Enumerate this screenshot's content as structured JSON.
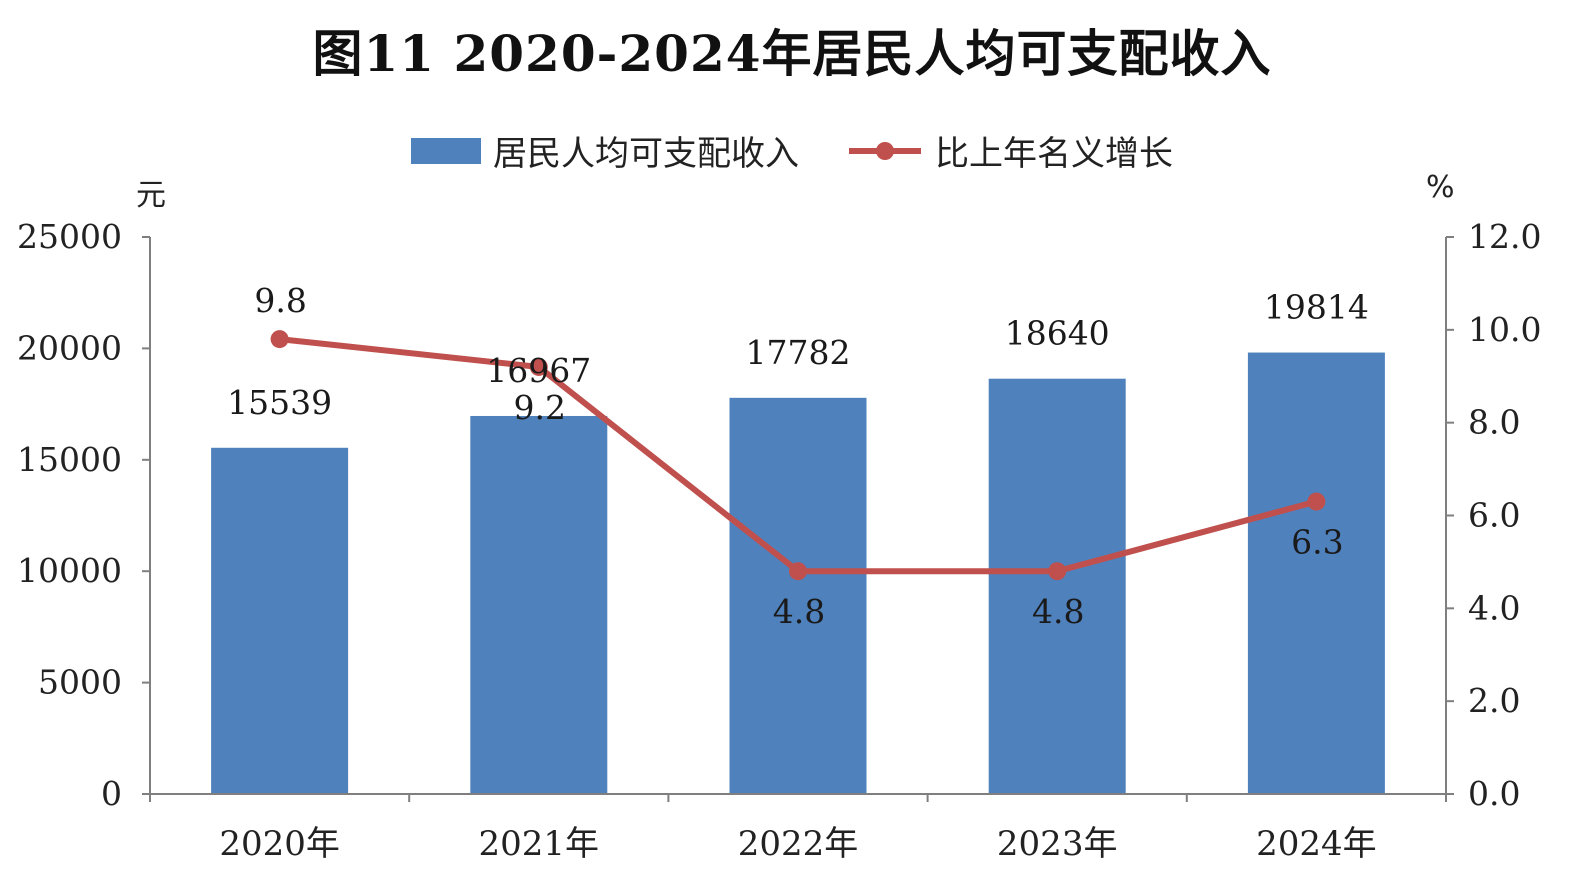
{
  "title": "图11  2020-2024年居民人均可支配收入",
  "legend": {
    "bar_label": "居民人均可支配收入",
    "line_label": "比上年名义增长"
  },
  "units": {
    "left": "元",
    "right": "%"
  },
  "colors": {
    "bar": "#4f81bd",
    "line": "#c0504d",
    "axis": "#7f7f7f"
  },
  "chart_data": {
    "type": "bar",
    "title": "图11  2020-2024年居民人均可支配收入",
    "categories": [
      "2020年",
      "2021年",
      "2022年",
      "2023年",
      "2024年"
    ],
    "series": [
      {
        "name": "居民人均可支配收入",
        "type": "bar",
        "axis": "left",
        "values": [
          15539,
          16967,
          17782,
          18640,
          19814
        ]
      },
      {
        "name": "比上年名义增长",
        "type": "line",
        "axis": "right",
        "values": [
          9.8,
          9.2,
          4.8,
          4.8,
          6.3
        ]
      }
    ],
    "ylabel": "元",
    "y2label": "%",
    "ylim": [
      0,
      25000
    ],
    "y2lim": [
      0,
      12
    ],
    "yticks": [
      "0",
      "5000",
      "10000",
      "15000",
      "20000",
      "25000"
    ],
    "y2ticks": [
      "0.0",
      "2.0",
      "4.0",
      "6.0",
      "8.0",
      "10.0",
      "12.0"
    ],
    "grid": false,
    "legend_position": "top-center"
  }
}
